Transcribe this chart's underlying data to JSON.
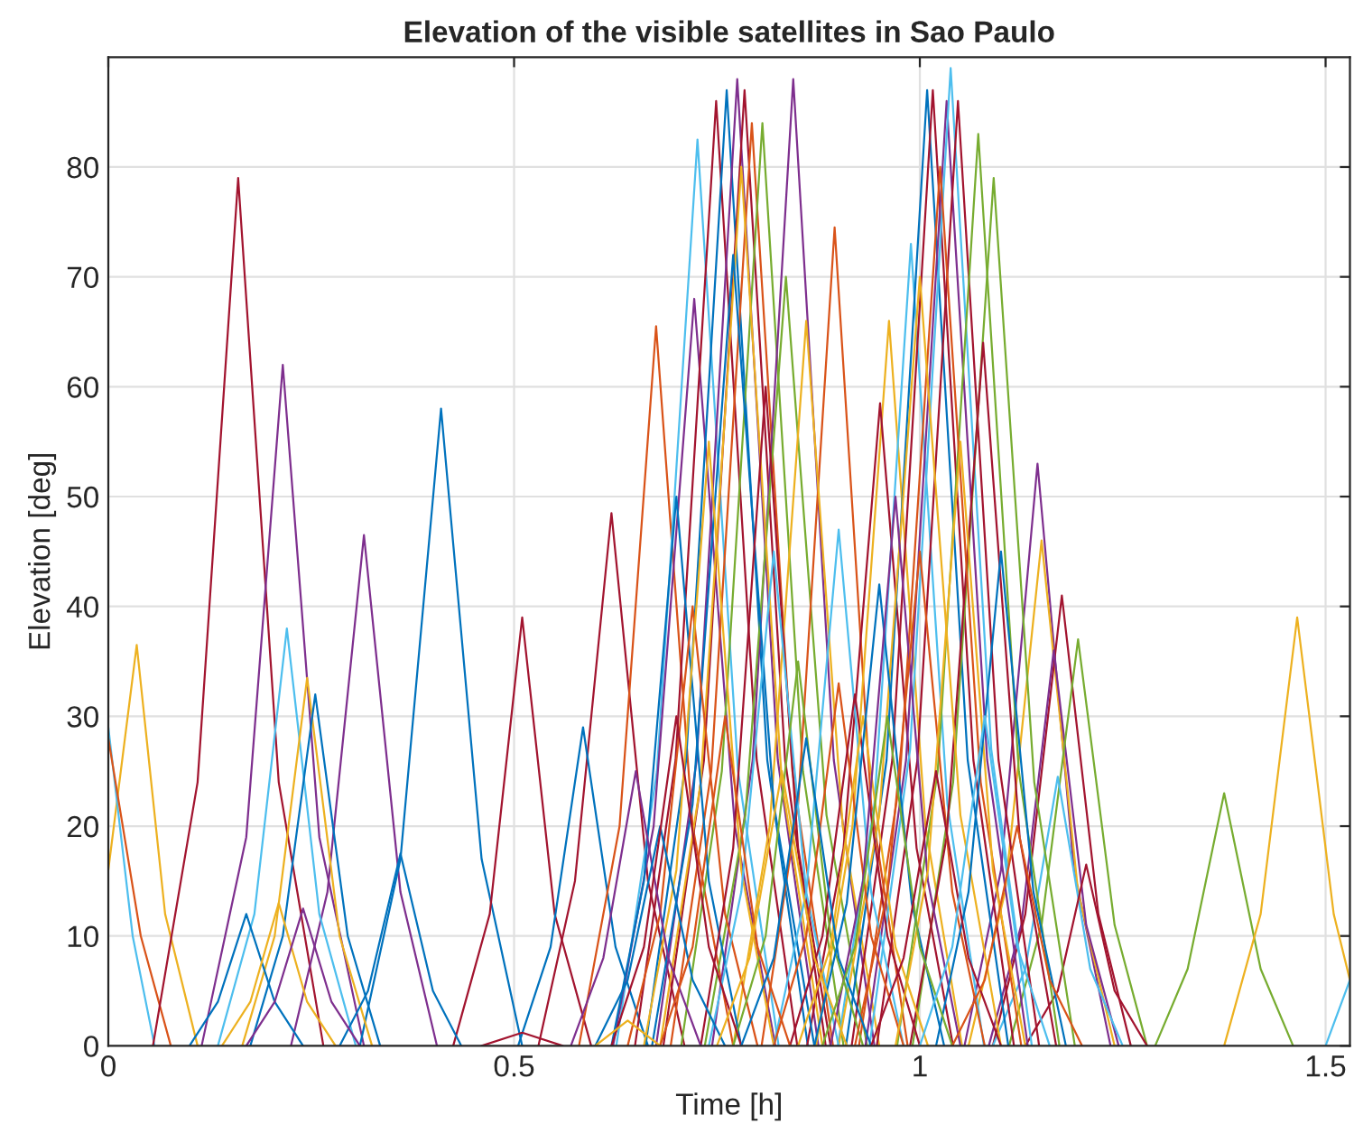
{
  "chart_data": {
    "type": "line",
    "title": "Elevation of the visible satellites in Sao Paulo",
    "xlabel": "Time [h]",
    "ylabel": "Elevation [deg]",
    "xlim": [
      0,
      1.53
    ],
    "ylim": [
      0,
      90
    ],
    "xticks": [
      0,
      0.5,
      1,
      1.5
    ],
    "yticks": [
      0,
      10,
      20,
      30,
      40,
      50,
      60,
      70,
      80
    ],
    "grid": true,
    "series": [
      {
        "color": "#edb120",
        "x": [
          0,
          0.035,
          0.07,
          0.11
        ],
        "values": [
          16,
          36.5,
          12,
          0
        ]
      },
      {
        "color": "#4dbeee",
        "x": [
          0,
          0.03,
          0.057
        ],
        "values": [
          29,
          10,
          0
        ]
      },
      {
        "color": "#d95319",
        "x": [
          0,
          0.04,
          0.077
        ],
        "values": [
          28,
          10,
          0
        ]
      },
      {
        "color": "#a2142f",
        "x": [
          0.055,
          0.11,
          0.16,
          0.21,
          0.265
        ],
        "values": [
          0,
          24,
          79,
          24,
          0
        ]
      },
      {
        "color": "#7e2f8e",
        "x": [
          0.115,
          0.17,
          0.215,
          0.26,
          0.315
        ],
        "values": [
          0,
          19,
          62,
          19,
          0
        ]
      },
      {
        "color": "#7e2f8e",
        "x": [
          0.225,
          0.27,
          0.315,
          0.36,
          0.405
        ],
        "values": [
          0,
          14,
          46.5,
          14,
          0
        ]
      },
      {
        "color": "#0072bd",
        "x": [
          0.31,
          0.36,
          0.41,
          0.46,
          0.51
        ],
        "values": [
          0,
          17,
          58,
          17,
          0
        ]
      },
      {
        "color": "#a2142f",
        "x": [
          0.425,
          0.47,
          0.51,
          0.55,
          0.595
        ],
        "values": [
          0,
          12,
          39,
          12,
          0
        ]
      },
      {
        "color": "#a2142f",
        "x": [
          0.53,
          0.575,
          0.62,
          0.665,
          0.71
        ],
        "values": [
          0,
          15,
          48.5,
          15,
          0
        ]
      },
      {
        "color": "#0072bd",
        "x": [
          0.505,
          0.545,
          0.585,
          0.625,
          0.665
        ],
        "values": [
          0,
          9,
          29,
          9,
          0
        ]
      },
      {
        "color": "#4dbeee",
        "x": [
          0.135,
          0.18,
          0.22,
          0.26,
          0.305
        ],
        "values": [
          0,
          12,
          38,
          12,
          0
        ]
      },
      {
        "color": "#edb120",
        "x": [
          0.165,
          0.205,
          0.245,
          0.285,
          0.325
        ],
        "values": [
          0,
          10,
          33.5,
          10,
          0
        ]
      },
      {
        "color": "#0072bd",
        "x": [
          0.175,
          0.215,
          0.255,
          0.295,
          0.335
        ],
        "values": [
          0,
          10,
          32,
          10,
          0
        ]
      },
      {
        "color": "#0072bd",
        "x": [
          0.285,
          0.32,
          0.36,
          0.4,
          0.435
        ],
        "values": [
          0,
          5,
          17.5,
          5,
          0
        ]
      },
      {
        "color": "#0072bd",
        "x": [
          0.1,
          0.135,
          0.17,
          0.205,
          0.24
        ],
        "values": [
          0,
          4,
          12,
          4,
          0
        ]
      },
      {
        "color": "#edb120",
        "x": [
          0.14,
          0.175,
          0.21,
          0.245,
          0.28
        ],
        "values": [
          0,
          4,
          13,
          4,
          0
        ]
      },
      {
        "color": "#7e2f8e",
        "x": [
          0.17,
          0.205,
          0.24,
          0.275,
          0.31
        ],
        "values": [
          0,
          4,
          12.5,
          4,
          0
        ]
      },
      {
        "color": "#a2142f",
        "x": [
          0.46,
          0.51,
          0.56
        ],
        "values": [
          0,
          1.2,
          0
        ]
      },
      {
        "color": "#d95319",
        "x": [
          0.58,
          0.63,
          0.675,
          0.72,
          0.77
        ],
        "values": [
          0,
          20,
          65.5,
          20,
          0
        ]
      },
      {
        "color": "#77ac30",
        "x": [
          1.29,
          1.33,
          1.375,
          1.42,
          1.46
        ],
        "values": [
          0,
          7,
          23,
          7,
          0
        ]
      },
      {
        "color": "#edb120",
        "x": [
          1.375,
          1.42,
          1.465,
          1.51,
          1.53
        ],
        "values": [
          0,
          12,
          39,
          12,
          6
        ]
      },
      {
        "color": "#4dbeee",
        "x": [
          1.5,
          1.53
        ],
        "values": [
          0,
          6
        ]
      },
      {
        "color": "#7e2f8e",
        "x": [
          1.055,
          1.1,
          1.145,
          1.19,
          1.235
        ],
        "values": [
          0,
          16,
          53,
          16,
          0
        ]
      },
      {
        "color": "#edb120",
        "x": [
          1.06,
          1.105,
          1.15,
          1.195,
          1.24
        ],
        "values": [
          0,
          14,
          46,
          14,
          0
        ]
      },
      {
        "color": "#a2142f",
        "x": [
          1.09,
          1.13,
          1.175,
          1.22,
          1.26
        ],
        "values": [
          0,
          12,
          41,
          12,
          0
        ]
      },
      {
        "color": "#7e2f8e",
        "x": [
          1.085,
          1.125,
          1.165,
          1.205,
          1.245
        ],
        "values": [
          0,
          11,
          36,
          11,
          0
        ]
      },
      {
        "color": "#77ac30",
        "x": [
          1.11,
          1.15,
          1.195,
          1.24,
          1.28
        ],
        "values": [
          0,
          11,
          37,
          11,
          0
        ]
      },
      {
        "color": "#4dbeee",
        "x": [
          1.09,
          1.13,
          1.17,
          1.21,
          1.25
        ],
        "values": [
          0,
          7,
          24.5,
          7,
          0
        ]
      },
      {
        "color": "#a2142f",
        "x": [
          1.13,
          1.17,
          1.205,
          1.24,
          1.28
        ],
        "values": [
          0,
          5,
          16.5,
          5,
          0
        ]
      },
      {
        "color": "#4dbeee",
        "x": [
          0.626,
          0.676,
          0.726,
          0.776,
          0.826
        ],
        "values": [
          0,
          25,
          82.5,
          25,
          0
        ]
      },
      {
        "color": "#7e2f8e",
        "x": [
          0.622,
          0.672,
          0.722,
          0.772,
          0.822
        ],
        "values": [
          0,
          20,
          68,
          20,
          0
        ]
      },
      {
        "color": "#a2142f",
        "x": [
          0.649,
          0.699,
          0.749,
          0.799,
          0.849
        ],
        "values": [
          0,
          26,
          86,
          26,
          0
        ]
      },
      {
        "color": "#0072bd",
        "x": [
          0.662,
          0.712,
          0.762,
          0.812,
          0.862
        ],
        "values": [
          0,
          26,
          87,
          26,
          0
        ]
      },
      {
        "color": "#7e2f8e",
        "x": [
          0.675,
          0.725,
          0.775,
          0.825,
          0.875
        ],
        "values": [
          0,
          26,
          88,
          26,
          0
        ]
      },
      {
        "color": "#a2142f",
        "x": [
          0.684,
          0.734,
          0.784,
          0.834,
          0.884
        ],
        "values": [
          0,
          26,
          87,
          26,
          0
        ]
      },
      {
        "color": "#d95319",
        "x": [
          0.693,
          0.743,
          0.793,
          0.843,
          0.893
        ],
        "values": [
          0,
          25,
          84,
          25,
          0
        ]
      },
      {
        "color": "#77ac30",
        "x": [
          0.706,
          0.756,
          0.806,
          0.856,
          0.906
        ],
        "values": [
          0,
          25,
          84,
          25,
          0
        ]
      },
      {
        "color": "#7e2f8e",
        "x": [
          0.744,
          0.794,
          0.844,
          0.894,
          0.944
        ],
        "values": [
          0,
          26,
          88,
          26,
          0
        ]
      },
      {
        "color": "#77ac30",
        "x": [
          0.735,
          0.785,
          0.835,
          0.885,
          0.935
        ],
        "values": [
          0,
          21,
          70,
          21,
          0
        ]
      },
      {
        "color": "#d95319",
        "x": [
          0.805,
          0.85,
          0.895,
          0.94,
          0.985
        ],
        "values": [
          0,
          22,
          74.5,
          22,
          0
        ]
      },
      {
        "color": "#edb120",
        "x": [
          0.77,
          0.815,
          0.86,
          0.905,
          0.95
        ],
        "values": [
          0,
          20,
          66,
          20,
          0
        ]
      },
      {
        "color": "#edb120",
        "x": [
          0.872,
          0.917,
          0.962,
          1.007,
          1.052
        ],
        "values": [
          0,
          20,
          66,
          20,
          0
        ]
      },
      {
        "color": "#a2142f",
        "x": [
          0.861,
          0.906,
          0.951,
          0.996,
          1.041
        ],
        "values": [
          0,
          18,
          58.5,
          18,
          0
        ]
      },
      {
        "color": "#4dbeee",
        "x": [
          0.899,
          0.944,
          0.989,
          1.034,
          1.079
        ],
        "values": [
          0,
          22,
          73,
          22,
          0
        ]
      },
      {
        "color": "#0072bd",
        "x": [
          0.909,
          0.959,
          1.009,
          1.059,
          1.109
        ],
        "values": [
          0,
          26,
          87,
          26,
          0
        ]
      },
      {
        "color": "#a2142f",
        "x": [
          0.916,
          0.966,
          1.016,
          1.066,
          1.116
        ],
        "values": [
          0,
          26,
          87,
          26,
          0
        ]
      },
      {
        "color": "#7e2f8e",
        "x": [
          0.933,
          0.983,
          1.033,
          1.083,
          1.133
        ],
        "values": [
          0,
          26,
          86,
          26,
          0
        ]
      },
      {
        "color": "#4dbeee",
        "x": [
          0.938,
          0.988,
          1.038,
          1.088,
          1.138
        ],
        "values": [
          0,
          27,
          89,
          27,
          0
        ]
      },
      {
        "color": "#a2142f",
        "x": [
          0.947,
          0.997,
          1.047,
          1.097,
          1.147
        ],
        "values": [
          0,
          26,
          86,
          26,
          0
        ]
      },
      {
        "color": "#77ac30",
        "x": [
          0.972,
          1.022,
          1.072,
          1.122,
          1.172
        ],
        "values": [
          0,
          25,
          83,
          25,
          0
        ]
      },
      {
        "color": "#77ac30",
        "x": [
          0.991,
          1.041,
          1.091,
          1.141,
          1.191
        ],
        "values": [
          0,
          24,
          79,
          24,
          0
        ]
      },
      {
        "color": "#a2142f",
        "x": [
          0.988,
          1.033,
          1.078,
          1.123,
          1.168
        ],
        "values": [
          0,
          19,
          64,
          19,
          0
        ]
      },
      {
        "color": "#edb120",
        "x": [
          0.68,
          0.73,
          0.78,
          0.83,
          0.88
        ],
        "values": [
          0,
          24,
          80,
          24,
          0
        ]
      },
      {
        "color": "#d95319",
        "x": [
          0.925,
          0.975,
          1.025,
          1.075,
          1.125
        ],
        "values": [
          0,
          24,
          80,
          24,
          0
        ]
      },
      {
        "color": "#0072bd",
        "x": [
          0.67,
          0.72,
          0.77,
          0.82,
          0.87
        ],
        "values": [
          0,
          22,
          72,
          22,
          0
        ]
      },
      {
        "color": "#edb120",
        "x": [
          0.9,
          0.95,
          1.0,
          1.05,
          1.1
        ],
        "values": [
          0,
          21,
          70,
          21,
          0
        ]
      },
      {
        "color": "#0072bd",
        "x": [
          0.62,
          0.66,
          0.7,
          0.74,
          0.78
        ],
        "values": [
          0,
          15,
          50,
          15,
          0
        ]
      },
      {
        "color": "#d95319",
        "x": [
          0.64,
          0.68,
          0.72,
          0.76,
          0.8
        ],
        "values": [
          0,
          12,
          40,
          12,
          0
        ]
      },
      {
        "color": "#edb120",
        "x": [
          0.66,
          0.7,
          0.74,
          0.78,
          0.82
        ],
        "values": [
          0,
          16,
          55,
          16,
          0
        ]
      },
      {
        "color": "#a2142f",
        "x": [
          0.73,
          0.77,
          0.81,
          0.85,
          0.89
        ],
        "values": [
          0,
          18,
          60,
          18,
          0
        ]
      },
      {
        "color": "#4dbeee",
        "x": [
          0.74,
          0.78,
          0.82,
          0.86,
          0.9
        ],
        "values": [
          0,
          14,
          45,
          14,
          0
        ]
      },
      {
        "color": "#77ac30",
        "x": [
          0.77,
          0.81,
          0.85,
          0.89,
          0.93
        ],
        "values": [
          0,
          10,
          35,
          10,
          0
        ]
      },
      {
        "color": "#4dbeee",
        "x": [
          0.82,
          0.86,
          0.9,
          0.94,
          0.98
        ],
        "values": [
          0,
          14,
          47,
          14,
          0
        ]
      },
      {
        "color": "#d95319",
        "x": [
          0.82,
          0.86,
          0.9,
          0.94,
          0.98
        ],
        "values": [
          0,
          10,
          33,
          10,
          0
        ]
      },
      {
        "color": "#a2142f",
        "x": [
          0.84,
          0.88,
          0.92,
          0.96,
          1.0
        ],
        "values": [
          0,
          10,
          32,
          10,
          0
        ]
      },
      {
        "color": "#edb120",
        "x": [
          0.85,
          0.89,
          0.93,
          0.97,
          1.01
        ],
        "values": [
          0,
          9,
          30,
          9,
          0
        ]
      },
      {
        "color": "#0072bd",
        "x": [
          0.87,
          0.91,
          0.95,
          0.99,
          1.03
        ],
        "values": [
          0,
          13,
          42,
          13,
          0
        ]
      },
      {
        "color": "#7e2f8e",
        "x": [
          0.89,
          0.93,
          0.97,
          1.01,
          1.05
        ],
        "values": [
          0,
          15,
          50,
          15,
          0
        ]
      },
      {
        "color": "#d95319",
        "x": [
          0.92,
          0.96,
          1.0,
          1.04,
          1.08
        ],
        "values": [
          0,
          14,
          45,
          14,
          0
        ]
      },
      {
        "color": "#edb120",
        "x": [
          0.97,
          1.01,
          1.05,
          1.09,
          1.13
        ],
        "values": [
          0,
          16,
          55,
          16,
          0
        ]
      },
      {
        "color": "#0072bd",
        "x": [
          1.02,
          1.06,
          1.1,
          1.14,
          1.18
        ],
        "values": [
          0,
          14,
          45,
          14,
          0
        ]
      },
      {
        "color": "#7e2f8e",
        "x": [
          0.57,
          0.61,
          0.65,
          0.69,
          0.73
        ],
        "values": [
          0,
          8,
          25,
          8,
          0
        ]
      },
      {
        "color": "#0072bd",
        "x": [
          0.6,
          0.64,
          0.68,
          0.72,
          0.76
        ],
        "values": [
          0,
          6,
          20,
          6,
          0
        ]
      },
      {
        "color": "#a2142f",
        "x": [
          0.62,
          0.66,
          0.7,
          0.74,
          0.78
        ],
        "values": [
          0,
          9,
          30,
          9,
          0
        ]
      },
      {
        "color": "#d95319",
        "x": [
          0.68,
          0.72,
          0.76,
          0.8,
          0.84
        ],
        "values": [
          0,
          9,
          30,
          9,
          0
        ]
      },
      {
        "color": "#edb120",
        "x": [
          0.75,
          0.79,
          0.83,
          0.87,
          0.91
        ],
        "values": [
          0,
          8,
          25,
          8,
          0
        ]
      },
      {
        "color": "#0072bd",
        "x": [
          0.78,
          0.82,
          0.86,
          0.9,
          0.94
        ],
        "values": [
          0,
          8,
          28,
          8,
          0
        ]
      },
      {
        "color": "#77ac30",
        "x": [
          0.88,
          0.92,
          0.96,
          1.0,
          1.04
        ],
        "values": [
          0,
          9,
          30,
          9,
          0
        ]
      },
      {
        "color": "#a2142f",
        "x": [
          0.94,
          0.98,
          1.02,
          1.06,
          1.1
        ],
        "values": [
          0,
          8,
          25,
          8,
          0
        ]
      },
      {
        "color": "#4dbeee",
        "x": [
          1.0,
          1.04,
          1.08,
          1.12,
          1.16
        ],
        "values": [
          0,
          9,
          30,
          9,
          0
        ]
      },
      {
        "color": "#d95319",
        "x": [
          1.04,
          1.08,
          1.12,
          1.16,
          1.2
        ],
        "values": [
          0,
          6,
          20,
          6,
          0
        ]
      },
      {
        "color": "#edb120",
        "x": [
          0.6,
          0.64,
          0.68
        ],
        "values": [
          0,
          2.3,
          0
        ]
      }
    ]
  }
}
